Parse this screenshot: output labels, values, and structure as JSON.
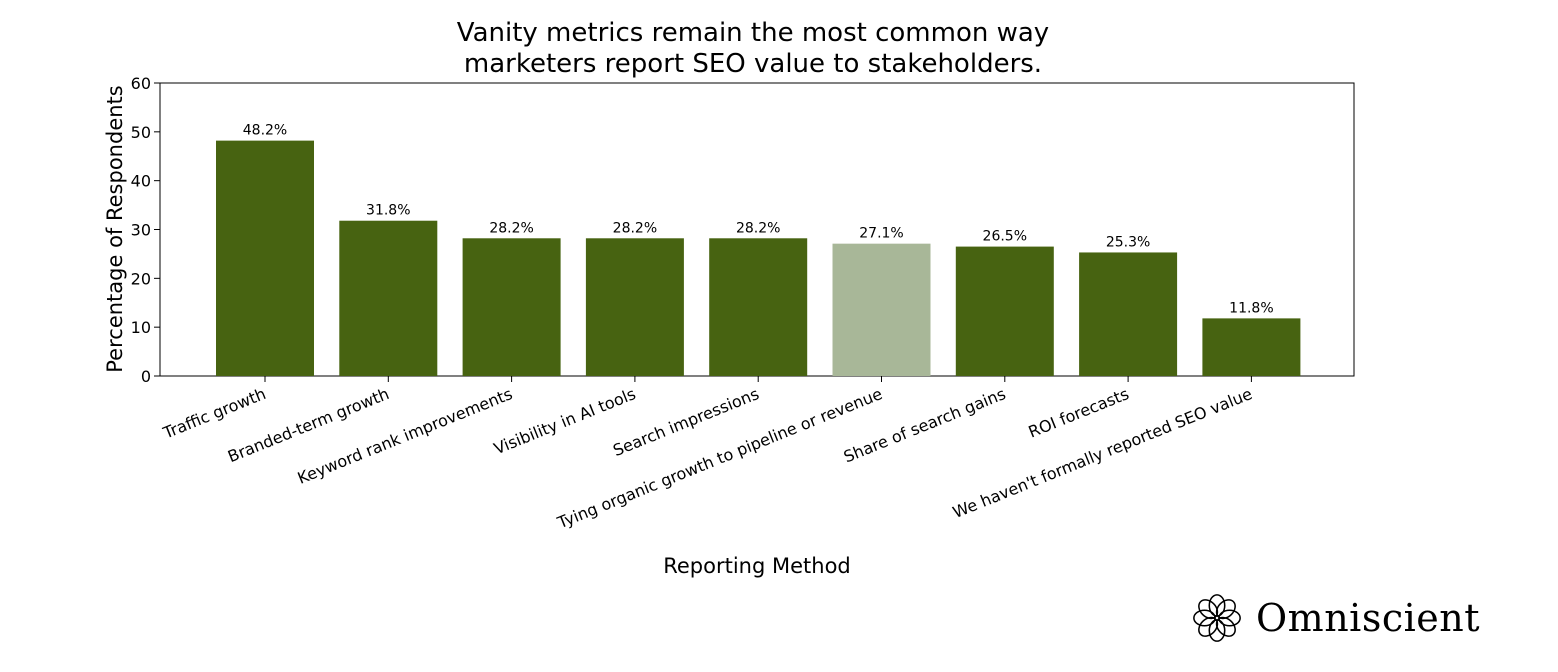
{
  "chart_data": {
    "type": "bar",
    "title": "Vanity metrics remain the most common way\nmarketers report SEO value to stakeholders.",
    "xlabel": "Reporting Method",
    "ylabel": "Percentage of Respondents",
    "ylim": [
      0,
      60
    ],
    "yticks": [
      0,
      10,
      20,
      30,
      40,
      50,
      60
    ],
    "grid": false,
    "categories": [
      "Traffic growth",
      "Branded-term growth",
      "Keyword rank improvements",
      "Visibility in AI tools",
      "Search impressions",
      "Tying organic growth to pipeline or revenue",
      "Share of search gains",
      "ROI forecasts",
      "We haven't formally reported SEO value"
    ],
    "values": [
      48.2,
      31.8,
      28.2,
      28.2,
      28.2,
      27.1,
      26.5,
      25.3,
      11.8
    ],
    "data_labels": [
      "48.2%",
      "31.8%",
      "28.2%",
      "28.2%",
      "28.2%",
      "27.1%",
      "26.5%",
      "25.3%",
      "11.8%"
    ],
    "colors": {
      "primary": "#476311",
      "highlight": "#a8b798",
      "highlight_index": 5
    }
  },
  "brand": {
    "name": "Omniscient",
    "icon": "omniscient-logo-icon"
  }
}
